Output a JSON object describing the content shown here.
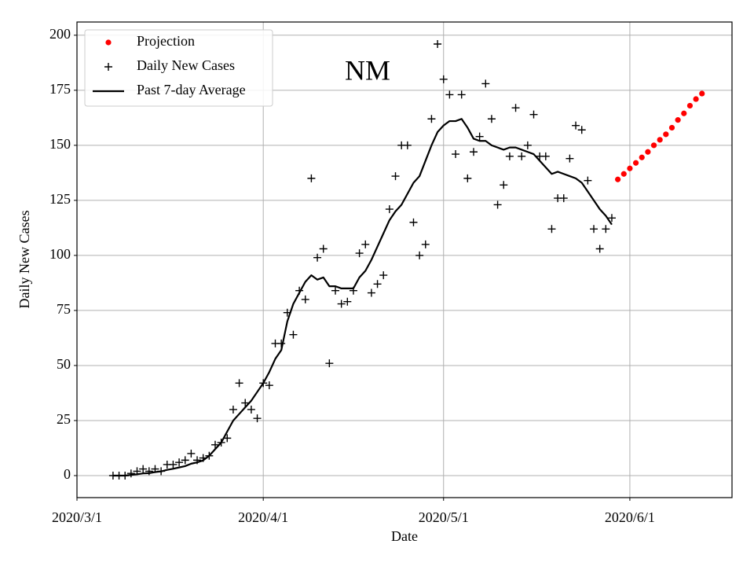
{
  "chart_data": {
    "type": "line",
    "title": "NM",
    "x_label": "Date",
    "y_label": "Daily New Cases",
    "xlim": [
      "2020/3/1",
      "2020/6/18"
    ],
    "xticks": [
      "2020/3/1",
      "2020/4/1",
      "2020/5/1",
      "2020/6/1"
    ],
    "ylim": [
      -10,
      206
    ],
    "yticks": [
      0,
      25,
      50,
      75,
      100,
      125,
      150,
      175,
      200
    ],
    "grid": true,
    "legend": "upper left",
    "series": [
      {
        "name": "Projection",
        "color": "red",
        "style": "dot",
        "x": [
          "2020/5/30",
          "2020/5/31",
          "2020/6/1",
          "2020/6/2",
          "2020/6/3",
          "2020/6/4",
          "2020/6/5",
          "2020/6/6",
          "2020/6/7",
          "2020/6/8",
          "2020/6/9",
          "2020/6/10",
          "2020/6/11",
          "2020/6/12",
          "2020/6/13"
        ],
        "values": [
          134.5,
          137,
          139.5,
          142,
          144.5,
          147,
          150,
          152.5,
          155,
          158,
          161.5,
          164.5,
          168,
          171,
          173.5
        ]
      },
      {
        "name": "Daily New Cases",
        "color": "black",
        "style": "plus",
        "x": [
          "2020/3/7",
          "2020/3/8",
          "2020/3/9",
          "2020/3/10",
          "2020/3/11",
          "2020/3/12",
          "2020/3/13",
          "2020/3/14",
          "2020/3/15",
          "2020/3/16",
          "2020/3/17",
          "2020/3/18",
          "2020/3/19",
          "2020/3/20",
          "2020/3/21",
          "2020/3/22",
          "2020/3/23",
          "2020/3/24",
          "2020/3/25",
          "2020/3/26",
          "2020/3/27",
          "2020/3/28",
          "2020/3/29",
          "2020/3/30",
          "2020/3/31",
          "2020/4/1",
          "2020/4/2",
          "2020/4/3",
          "2020/4/4",
          "2020/4/5",
          "2020/4/6",
          "2020/4/7",
          "2020/4/8",
          "2020/4/9",
          "2020/4/10",
          "2020/4/11",
          "2020/4/12",
          "2020/4/13",
          "2020/4/14",
          "2020/4/15",
          "2020/4/16",
          "2020/4/17",
          "2020/4/18",
          "2020/4/19",
          "2020/4/20",
          "2020/4/21",
          "2020/4/22",
          "2020/4/23",
          "2020/4/24",
          "2020/4/25",
          "2020/4/26",
          "2020/4/27",
          "2020/4/28",
          "2020/4/29",
          "2020/4/30",
          "2020/5/1",
          "2020/5/2",
          "2020/5/3",
          "2020/5/4",
          "2020/5/5",
          "2020/5/6",
          "2020/5/7",
          "2020/5/8",
          "2020/5/9",
          "2020/5/10",
          "2020/5/11",
          "2020/5/12",
          "2020/5/13",
          "2020/5/14",
          "2020/5/15",
          "2020/5/16",
          "2020/5/17",
          "2020/5/18",
          "2020/5/19",
          "2020/5/20",
          "2020/5/21",
          "2020/5/22",
          "2020/5/23",
          "2020/5/24",
          "2020/5/25",
          "2020/5/26",
          "2020/5/27",
          "2020/5/28",
          "2020/5/29"
        ],
        "values": [
          0,
          0,
          0,
          1,
          2,
          3,
          2,
          3,
          2,
          5,
          5,
          6,
          7,
          10,
          7,
          8,
          9,
          14,
          15,
          17,
          30,
          42,
          33,
          30,
          26,
          42,
          41,
          60,
          60,
          74,
          64,
          84,
          80,
          135,
          99,
          103,
          51,
          84,
          78,
          79,
          84,
          101,
          105,
          83,
          87,
          91,
          121,
          136,
          150,
          150,
          115,
          100,
          105,
          162,
          196,
          180,
          173,
          146,
          173,
          135,
          147,
          154,
          178,
          162,
          123,
          132,
          145,
          167,
          145,
          150,
          164,
          145,
          145,
          112,
          126,
          126,
          144,
          159,
          157,
          134,
          112,
          103,
          112,
          117
        ]
      },
      {
        "name": "Past 7-day Average",
        "color": "black",
        "style": "line",
        "x": [
          "2020/3/7",
          "2020/3/8",
          "2020/3/9",
          "2020/3/10",
          "2020/3/11",
          "2020/3/12",
          "2020/3/13",
          "2020/3/14",
          "2020/3/15",
          "2020/3/16",
          "2020/3/17",
          "2020/3/18",
          "2020/3/19",
          "2020/3/20",
          "2020/3/21",
          "2020/3/22",
          "2020/3/23",
          "2020/3/24",
          "2020/3/25",
          "2020/3/26",
          "2020/3/27",
          "2020/3/28",
          "2020/3/29",
          "2020/3/30",
          "2020/3/31",
          "2020/4/1",
          "2020/4/2",
          "2020/4/3",
          "2020/4/4",
          "2020/4/5",
          "2020/4/6",
          "2020/4/7",
          "2020/4/8",
          "2020/4/9",
          "2020/4/10",
          "2020/4/11",
          "2020/4/12",
          "2020/4/13",
          "2020/4/14",
          "2020/4/15",
          "2020/4/16",
          "2020/4/17",
          "2020/4/18",
          "2020/4/19",
          "2020/4/20",
          "2020/4/21",
          "2020/4/22",
          "2020/4/23",
          "2020/4/24",
          "2020/4/25",
          "2020/4/26",
          "2020/4/27",
          "2020/4/28",
          "2020/4/29",
          "2020/4/30",
          "2020/5/1",
          "2020/5/2",
          "2020/5/3",
          "2020/5/4",
          "2020/5/5",
          "2020/5/6",
          "2020/5/7",
          "2020/5/8",
          "2020/5/9",
          "2020/5/10",
          "2020/5/11",
          "2020/5/12",
          "2020/5/13",
          "2020/5/14",
          "2020/5/15",
          "2020/5/16",
          "2020/5/17",
          "2020/5/18",
          "2020/5/19",
          "2020/5/20",
          "2020/5/21",
          "2020/5/22",
          "2020/5/23",
          "2020/5/24",
          "2020/5/25",
          "2020/5/26",
          "2020/5/27",
          "2020/5/28",
          "2020/5/29"
        ],
        "values": [
          0,
          0,
          0,
          0.3,
          0.6,
          1,
          1.1,
          1.6,
          1.9,
          2.6,
          3.1,
          3.7,
          4.3,
          5.4,
          6,
          6.9,
          9,
          12,
          15,
          20,
          25,
          28,
          31,
          34,
          38,
          42,
          47,
          53,
          57,
          70,
          78,
          83,
          88,
          91,
          89,
          90,
          86,
          86,
          85,
          85,
          85,
          90,
          93,
          98,
          104,
          110,
          116,
          120,
          123,
          128,
          133,
          136,
          143,
          150,
          156,
          159,
          161,
          161,
          162,
          158,
          153,
          152,
          152,
          150,
          149,
          148,
          149,
          149,
          148,
          147,
          146,
          143,
          140,
          137,
          138,
          137,
          136,
          135,
          133,
          129,
          125,
          121,
          118,
          114
        ]
      }
    ]
  }
}
